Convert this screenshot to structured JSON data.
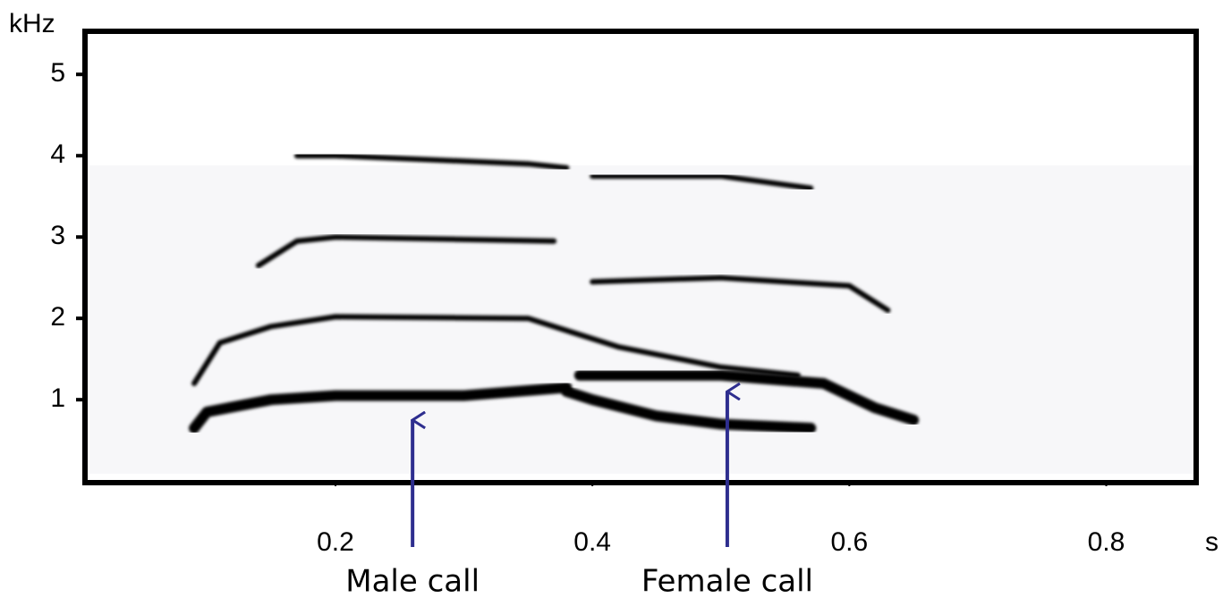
{
  "chart_data": {
    "type": "spectrogram",
    "x_unit": "s",
    "y_unit": "kHz",
    "xlim": [
      0.005,
      0.87
    ],
    "ylim": [
      -0.02,
      5.53
    ],
    "xticks": [
      0.2,
      0.4,
      0.6,
      0.8
    ],
    "yticks": [
      1,
      2,
      3,
      4,
      5
    ],
    "color": "#000000",
    "series": [
      {
        "x": [
          0.09,
          0.1,
          0.15,
          0.2,
          0.3,
          0.38
        ],
        "values": [
          0.65,
          0.85,
          1.0,
          1.05,
          1.05,
          1.15
        ]
      },
      {
        "x": [
          0.38,
          0.4,
          0.45,
          0.5,
          0.57
        ],
        "values": [
          1.1,
          1.0,
          0.8,
          0.7,
          0.65
        ]
      },
      {
        "x": [
          0.39,
          0.45,
          0.5,
          0.58,
          0.62,
          0.65
        ],
        "values": [
          1.3,
          1.3,
          1.3,
          1.2,
          0.9,
          0.75
        ]
      },
      {
        "x": [
          0.09,
          0.11,
          0.15,
          0.2,
          0.35,
          0.42,
          0.5,
          0.56
        ],
        "values": [
          1.2,
          1.7,
          1.9,
          2.02,
          2.0,
          1.65,
          1.4,
          1.3
        ]
      },
      {
        "x": [
          0.14,
          0.17,
          0.2,
          0.37
        ],
        "values": [
          2.65,
          2.95,
          3.0,
          2.95
        ]
      },
      {
        "x": [
          0.17,
          0.2,
          0.35,
          0.38
        ],
        "values": [
          4.0,
          4.0,
          3.9,
          3.85
        ]
      },
      {
        "x": [
          0.4,
          0.5,
          0.6,
          0.63
        ],
        "values": [
          2.45,
          2.5,
          2.4,
          2.1
        ]
      },
      {
        "x": [
          0.4,
          0.5,
          0.57
        ],
        "values": [
          3.75,
          3.75,
          3.6
        ]
      }
    ],
    "annotations": [
      {
        "text": "Male call",
        "x": 0.26,
        "y": 0.75
      },
      {
        "text": "Female call",
        "x": 0.505,
        "y": 1.1
      }
    ]
  }
}
